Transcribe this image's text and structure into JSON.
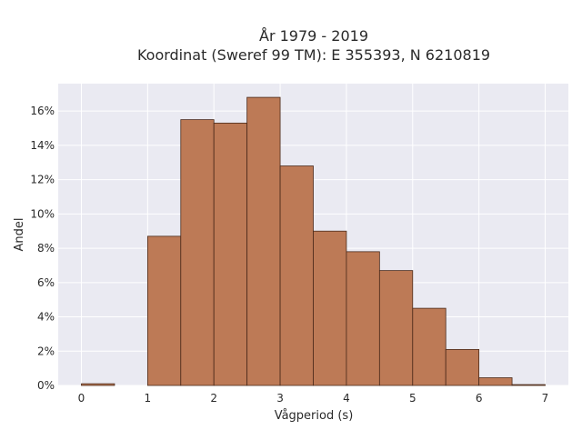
{
  "chart_data": {
    "type": "bar",
    "title": "År 1979 - 2019",
    "subtitle": "Koordinat (Sweref 99 TM): E 355393, N 6210819",
    "xlabel": "Vågperiod (s)",
    "ylabel": "Andel",
    "x_ticks": [
      "0",
      "1",
      "2",
      "3",
      "4",
      "5",
      "6",
      "7"
    ],
    "y_ticks": [
      "0%",
      "2%",
      "4%",
      "6%",
      "8%",
      "10%",
      "12%",
      "14%",
      "16%"
    ],
    "xlim": [
      -0.35,
      7.35
    ],
    "ylim": [
      0,
      17.6
    ],
    "y_unit": "%",
    "grid": true,
    "bins": [
      {
        "start": 0.0,
        "end": 0.5,
        "value": 0.1
      },
      {
        "start": 0.5,
        "end": 1.0,
        "value": 0.0
      },
      {
        "start": 1.0,
        "end": 1.5,
        "value": 8.7
      },
      {
        "start": 1.5,
        "end": 2.0,
        "value": 15.5
      },
      {
        "start": 2.0,
        "end": 2.5,
        "value": 15.3
      },
      {
        "start": 2.5,
        "end": 3.0,
        "value": 16.8
      },
      {
        "start": 3.0,
        "end": 3.5,
        "value": 12.8
      },
      {
        "start": 3.5,
        "end": 4.0,
        "value": 9.0
      },
      {
        "start": 4.0,
        "end": 4.5,
        "value": 7.8
      },
      {
        "start": 4.5,
        "end": 5.0,
        "value": 6.7
      },
      {
        "start": 5.0,
        "end": 5.5,
        "value": 4.5
      },
      {
        "start": 5.5,
        "end": 6.0,
        "value": 2.1
      },
      {
        "start": 6.0,
        "end": 6.5,
        "value": 0.45
      },
      {
        "start": 6.5,
        "end": 7.0,
        "value": 0.05
      }
    ],
    "colors": {
      "bar_fill": "#bd7a56",
      "bar_edge": "#4a2a1a",
      "plot_bg": "#eaeaf2",
      "grid": "#ffffff"
    }
  }
}
